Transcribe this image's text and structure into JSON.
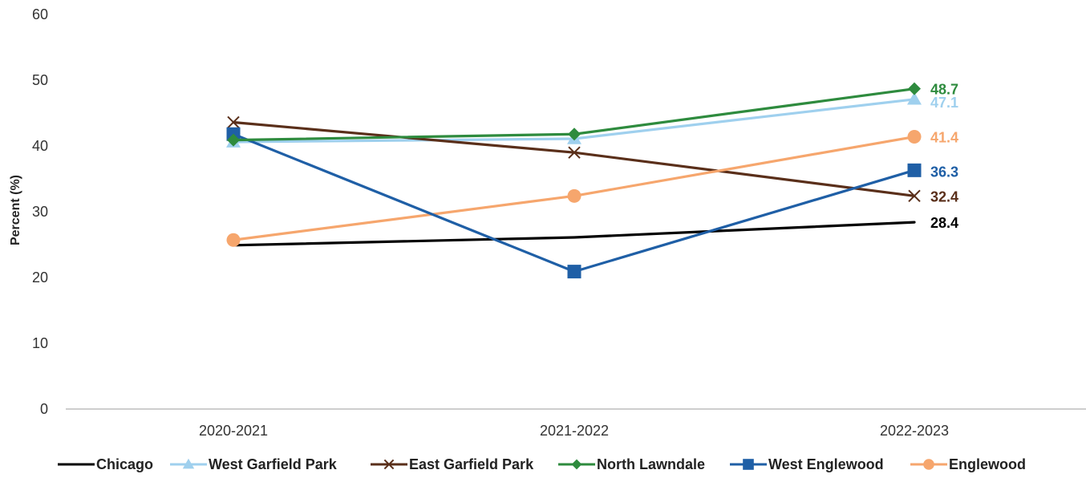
{
  "chart_data": {
    "type": "line",
    "title": "",
    "xlabel": "",
    "ylabel": "Percent (%)",
    "ylim": [
      0,
      60
    ],
    "yticks": [
      0,
      10,
      20,
      30,
      40,
      50,
      60
    ],
    "categories": [
      "2020-2021",
      "2021-2022",
      "2022-2023"
    ],
    "grid": false,
    "legend_position": "bottom",
    "series": [
      {
        "name": "Chicago",
        "values": [
          24.9,
          26.1,
          28.4
        ],
        "color": "#000000",
        "marker": "none",
        "end_label": "28.4"
      },
      {
        "name": "West Garfield Park",
        "values": [
          40.6,
          41.1,
          47.1
        ],
        "color": "#9fd0ee",
        "marker": "triangle",
        "end_label": "47.1"
      },
      {
        "name": "East Garfield Park",
        "values": [
          43.6,
          39.0,
          32.4
        ],
        "color": "#5a2f1a",
        "marker": "x",
        "end_label": "32.4"
      },
      {
        "name": "North Lawndale",
        "values": [
          40.9,
          41.8,
          48.7
        ],
        "color": "#2e8b3e",
        "marker": "diamond",
        "end_label": "48.7"
      },
      {
        "name": "West Englewood",
        "values": [
          41.8,
          20.9,
          36.3
        ],
        "color": "#1f5fa6",
        "marker": "square",
        "end_label": "36.3"
      },
      {
        "name": "Englewood",
        "values": [
          25.7,
          32.4,
          41.4
        ],
        "color": "#f6a66d",
        "marker": "circle",
        "end_label": "41.4"
      }
    ]
  }
}
